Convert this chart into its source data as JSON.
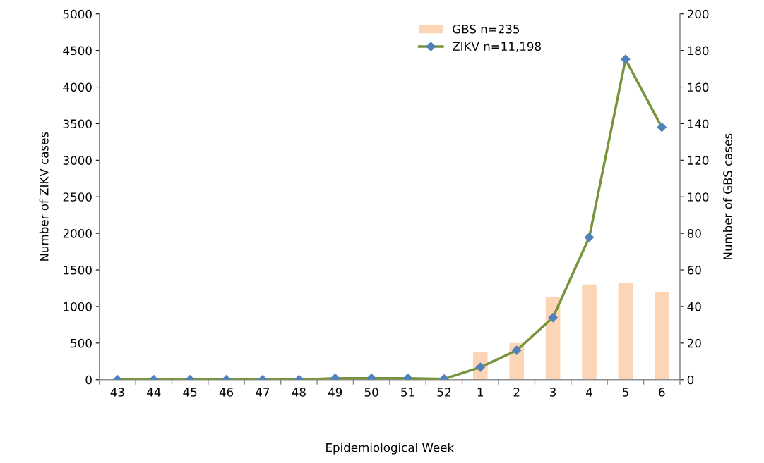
{
  "chart_data": {
    "type": "bar",
    "xlabel": "Epidemiological Week",
    "ylabel": "Number of ZIKV cases",
    "y2label": "Number of GBS cases",
    "categories": [
      "43",
      "44",
      "45",
      "46",
      "47",
      "48",
      "49",
      "50",
      "51",
      "52",
      "1",
      "2",
      "3",
      "4",
      "5",
      "6"
    ],
    "series": [
      {
        "name": "GBS n=235",
        "axis": "y2",
        "color": "#fbd5b5",
        "values": [
          null,
          null,
          null,
          null,
          null,
          null,
          null,
          null,
          null,
          null,
          15,
          20,
          45,
          52,
          53,
          48
        ]
      },
      {
        "name": "ZIKV n=11,198",
        "type": "line",
        "color": "#77933c",
        "marker": "diamond",
        "values": [
          0,
          0,
          0,
          0,
          0,
          0,
          20,
          20,
          20,
          10,
          170,
          400,
          850,
          1945,
          4380,
          3450
        ]
      }
    ],
    "ylim": [
      0,
      5000
    ],
    "yticks": [
      0,
      500,
      1000,
      1500,
      2000,
      2500,
      3000,
      3500,
      4000,
      4500,
      5000
    ],
    "y2lim": [
      0,
      200
    ],
    "y2ticks": [
      0,
      20,
      40,
      60,
      80,
      100,
      120,
      140,
      160,
      180,
      200
    ],
    "grid": false,
    "legend": "top right"
  }
}
